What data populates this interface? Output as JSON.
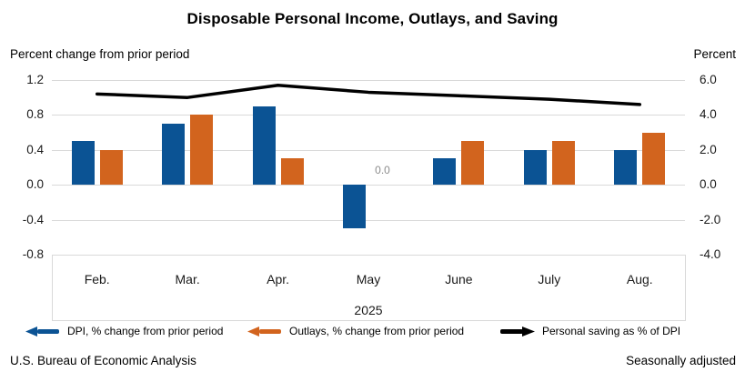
{
  "title": "Disposable Personal Income, Outlays, and Saving",
  "left_axis_title": "Percent change from prior period",
  "right_axis_title": "Percent",
  "footer": {
    "source": "U.S. Bureau of Economic Analysis",
    "note": "Seasonally adjusted"
  },
  "colors": {
    "dpi_bar": "#0b5394",
    "outlays_bar": "#d2641e",
    "saving_line": "#000000",
    "gridline": "#d9d9d9",
    "annotation_gray": "#8c8c8c"
  },
  "chart_data": {
    "type": "bar+line",
    "title": "Disposable Personal Income, Outlays, and Saving",
    "categories": [
      "Feb.",
      "Mar.",
      "Apr.",
      "May",
      "June",
      "July",
      "Aug."
    ],
    "year_label": "2025",
    "series": [
      {
        "name": "DPI, % change from prior period",
        "type": "bar",
        "axis": "left",
        "values": [
          0.5,
          0.7,
          0.9,
          -0.5,
          0.3,
          0.4,
          0.4
        ]
      },
      {
        "name": "Outlays, % change from prior period",
        "type": "bar",
        "axis": "left",
        "values": [
          0.4,
          0.8,
          0.3,
          0.0,
          0.5,
          0.5,
          0.6
        ]
      },
      {
        "name": "Personal saving as % of DPI",
        "type": "line",
        "axis": "right",
        "values": [
          5.2,
          5.0,
          5.7,
          5.3,
          5.1,
          4.9,
          4.6
        ]
      }
    ],
    "left_axis": {
      "label": "Percent change from prior period",
      "ticks": [
        "1.2",
        "0.8",
        "0.4",
        "0.0",
        "-0.4",
        "-0.8"
      ],
      "min": -0.8,
      "max": 1.2
    },
    "right_axis": {
      "label": "Percent",
      "ticks": [
        "6.0",
        "4.0",
        "2.0",
        "0.0",
        "-2.0",
        "-4.0"
      ],
      "min": -4.0,
      "max": 6.0
    },
    "annotations": [
      {
        "text": "0.0",
        "category": "May",
        "series": "Outlays, % change from prior period"
      }
    ],
    "grid": true,
    "legend_position": "bottom"
  }
}
